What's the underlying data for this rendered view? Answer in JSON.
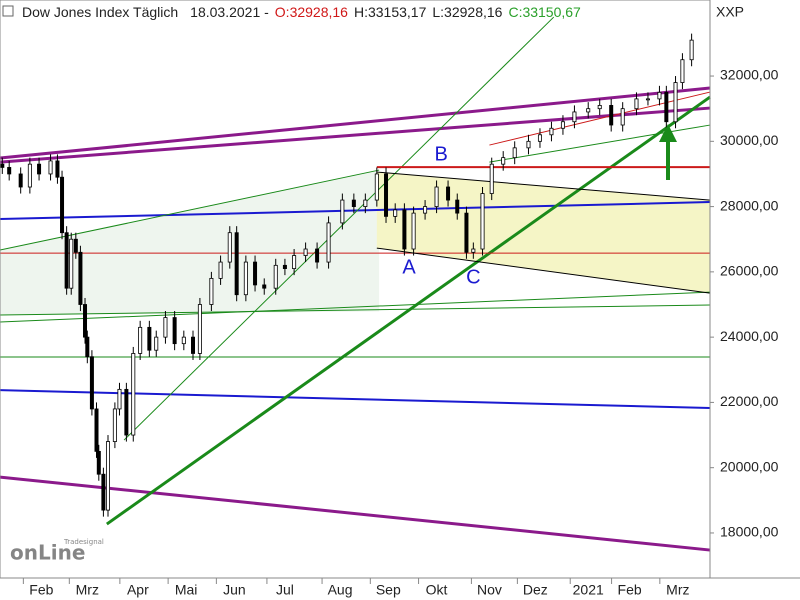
{
  "chart_data": {
    "type": "candlestick",
    "title": "Dow Jones Index Täglich",
    "date": "18.03.2021 -",
    "open_label": "O:32928,16",
    "high_label": "H:33153,17",
    "low_label": "L:32928,16",
    "close_label": "C:33150,67",
    "axis_label": "XXP",
    "watermark": [
      "Tradesignal",
      "onLine"
    ],
    "xlim": [
      0,
      309
    ],
    "ylim": [
      16620,
      34330
    ],
    "xticks": [
      {
        "value": 18,
        "label": "Feb"
      },
      {
        "value": 38,
        "label": "Mrz"
      },
      {
        "value": 60,
        "label": "Apr"
      },
      {
        "value": 81,
        "label": "Mai"
      },
      {
        "value": 102,
        "label": "Jun"
      },
      {
        "value": 124,
        "label": "Jul"
      },
      {
        "value": 148,
        "label": "Aug"
      },
      {
        "value": 169,
        "label": "Sep"
      },
      {
        "value": 190,
        "label": "Okt"
      },
      {
        "value": 213,
        "label": "Nov"
      },
      {
        "value": 233,
        "label": "Dez"
      },
      {
        "value": 256,
        "label": "2021"
      },
      {
        "value": 274,
        "label": "Feb"
      },
      {
        "value": 295,
        "label": "Mrz"
      }
    ],
    "yticks": [
      {
        "value": 18000,
        "label": "18000,00"
      },
      {
        "value": 20000,
        "label": "20000,00"
      },
      {
        "value": 22000,
        "label": "22000,00"
      },
      {
        "value": 24000,
        "label": "24000,00"
      },
      {
        "value": 26000,
        "label": "26000,00"
      },
      {
        "value": 28000,
        "label": "28000,00"
      },
      {
        "value": 30000,
        "label": "30000,00"
      },
      {
        "value": 32000,
        "label": "32000,00"
      }
    ],
    "up_color": "#ffffff",
    "down_color": "#000000",
    "x": [
      1,
      4,
      9,
      13,
      17,
      22,
      25,
      27,
      29,
      31,
      33,
      35,
      37,
      38,
      40,
      42,
      43,
      45,
      47,
      50,
      52,
      55,
      58,
      61,
      65,
      68,
      72,
      76,
      80,
      84,
      87,
      92,
      96,
      100,
      103,
      107,
      111,
      115,
      120,
      124,
      128,
      133,
      138,
      143,
      149,
      154,
      159,
      164,
      168,
      172,
      176,
      180,
      185,
      190,
      195,
      199,
      203,
      206,
      210,
      214,
      219,
      224,
      230,
      235,
      240,
      245,
      250,
      256,
      261,
      266,
      271,
      277,
      282,
      287,
      290,
      294,
      297,
      301
    ],
    "open": [
      29300,
      29200,
      29000,
      28600,
      29300,
      29000,
      29400,
      28900,
      27200,
      25500,
      27000,
      26600,
      25000,
      24000,
      23400,
      21800,
      20500,
      19800,
      18700,
      20800,
      21800,
      22400,
      21000,
      23500,
      24300,
      23600,
      24000,
      24600,
      23800,
      24000,
      23500,
      25000,
      25800,
      26300,
      27200,
      25300,
      26300,
      25600,
      25500,
      26200,
      26100,
      26500,
      26700,
      26300,
      27500,
      28200,
      28000,
      28200,
      29000,
      27700,
      27900,
      26700,
      27800,
      28000,
      28600,
      28200,
      27800,
      26600,
      26700,
      28400,
      29300,
      29500,
      29800,
      30000,
      30200,
      30400,
      30600,
      30900,
      31000,
      31100,
      30500,
      31000,
      31300,
      31300,
      31500,
      30600,
      31800,
      32500
    ],
    "high": [
      29500,
      29400,
      29200,
      29500,
      29500,
      29600,
      29600,
      29100,
      27400,
      27200,
      27200,
      26800,
      25200,
      24200,
      23600,
      22000,
      20700,
      20000,
      21000,
      22000,
      22600,
      22600,
      23700,
      24500,
      24500,
      24200,
      24800,
      24800,
      24200,
      24200,
      25200,
      26000,
      26500,
      27400,
      27400,
      26500,
      26500,
      25800,
      26400,
      26400,
      26700,
      26900,
      26900,
      27700,
      28400,
      28400,
      28400,
      29200,
      29200,
      28100,
      28100,
      28000,
      28200,
      28800,
      28800,
      28400,
      28000,
      26900,
      28600,
      29500,
      29700,
      30000,
      30200,
      30400,
      30600,
      30800,
      31100,
      31200,
      31300,
      31300,
      31200,
      31500,
      31500,
      31700,
      31700,
      32000,
      32700,
      33300
    ],
    "low": [
      29000,
      28800,
      28400,
      28400,
      28800,
      28800,
      28700,
      27000,
      25300,
      25300,
      26400,
      24800,
      23800,
      23200,
      21600,
      20300,
      19600,
      18500,
      18500,
      20600,
      21600,
      20800,
      20800,
      23300,
      23400,
      23400,
      23800,
      23600,
      23600,
      23300,
      23300,
      24800,
      25600,
      26100,
      25100,
      25100,
      25400,
      25300,
      25300,
      25900,
      25900,
      26300,
      26100,
      26100,
      27300,
      27800,
      27800,
      28000,
      27500,
      27500,
      26500,
      26500,
      27600,
      27800,
      28000,
      27600,
      26400,
      26400,
      26500,
      28200,
      29100,
      29300,
      29600,
      29800,
      30000,
      30200,
      30400,
      30700,
      30800,
      30300,
      30300,
      30800,
      31100,
      31100,
      30400,
      30400,
      31600,
      32300
    ],
    "close": [
      29200,
      29000,
      28600,
      29300,
      29000,
      29400,
      28900,
      27200,
      25500,
      27000,
      26600,
      25000,
      24000,
      23400,
      21800,
      20500,
      19800,
      18700,
      20800,
      21800,
      22400,
      21000,
      23500,
      24300,
      23600,
      24000,
      24600,
      23800,
      24000,
      23500,
      25000,
      25800,
      26300,
      27200,
      25300,
      26300,
      25600,
      25500,
      26200,
      26100,
      26500,
      26700,
      26300,
      27500,
      28200,
      28000,
      28200,
      29000,
      27700,
      27900,
      26700,
      27800,
      28000,
      28600,
      28200,
      27800,
      26600,
      26700,
      28400,
      29300,
      29500,
      29800,
      30000,
      30200,
      30400,
      30600,
      30900,
      31000,
      31100,
      30500,
      31000,
      31300,
      31300,
      31500,
      30600,
      31800,
      32500,
      33100
    ],
    "bands": [
      {
        "x": [
          0,
          165
        ],
        "upper": [
          26668,
          29119
        ],
        "lower": [
          24677,
          24788
        ],
        "color": "#eef5ee"
      },
      {
        "x": [
          164,
          309
        ],
        "upper": [
          29058,
          28200
        ],
        "lower": [
          26729,
          25350
        ],
        "color": "#f5f5c6"
      }
    ],
    "lines": [
      {
        "x": [
          0,
          309
        ],
        "y": [
          29487,
          31632
        ],
        "color": "#8b1a8b",
        "width": 3
      },
      {
        "x": [
          0,
          309
        ],
        "y": [
          29364,
          31019
        ],
        "color": "#8b1a8b",
        "width": 3
      },
      {
        "x": [
          0,
          309
        ],
        "y": [
          19712,
          17476
        ],
        "color": "#8b1a8b",
        "width": 3
      },
      {
        "x": [
          0,
          309
        ],
        "y": [
          27618,
          28139
        ],
        "color": "#1a1ad0",
        "width": 2
      },
      {
        "x": [
          0,
          309
        ],
        "y": [
          22378,
          21827
        ],
        "color": "#1a1ad0",
        "width": 2
      },
      {
        "x": [
          46.5,
          309
        ],
        "y": [
          18273,
          31356
        ],
        "color": "#1a8a1a",
        "width": 3
      },
      {
        "x": [
          54,
          241
        ],
        "y": [
          20846,
          33807
        ],
        "color": "#1a8a1a",
        "width": 1
      },
      {
        "x": [
          0,
          165
        ],
        "y": [
          26668,
          29119
        ],
        "color": "#1a8a1a",
        "width": 1
      },
      {
        "x": [
          0,
          309
        ],
        "y": [
          23390,
          23390
        ],
        "color": "#1a8a1a",
        "width": 1
      },
      {
        "x": [
          0,
          309
        ],
        "y": [
          24677,
          24983
        ],
        "color": "#1a8a1a",
        "width": 1
      },
      {
        "x": [
          0,
          309
        ],
        "y": [
          24462,
          25381
        ],
        "color": "#1a8a1a",
        "width": 1
      },
      {
        "x": [
          213,
          309
        ],
        "y": [
          29364,
          30498
        ],
        "color": "#1a8a1a",
        "width": 1
      },
      {
        "x": [
          0,
          309
        ],
        "y": [
          26576,
          26576
        ],
        "color": "#cc1a1a",
        "width": 1
      },
      {
        "x": [
          164,
          309
        ],
        "y": [
          29211,
          29211
        ],
        "color": "#cc1a1a",
        "width": 2
      },
      {
        "x": [
          213,
          309
        ],
        "y": [
          29885,
          31509
        ],
        "color": "#cc1a1a",
        "width": 1
      },
      {
        "x": [
          164,
          309
        ],
        "y": [
          29058,
          28200
        ],
        "color": "#000000",
        "width": 1
      },
      {
        "x": [
          164,
          309
        ],
        "y": [
          26729,
          25350
        ],
        "color": "#000000",
        "width": 1
      }
    ],
    "annotations": [
      {
        "text": "A",
        "x": 178,
        "y": 26117
      },
      {
        "text": "B",
        "x": 192,
        "y": 29580
      },
      {
        "text": "C",
        "x": 206,
        "y": 25810
      }
    ],
    "annotation_color": "#1a1ad0"
  }
}
